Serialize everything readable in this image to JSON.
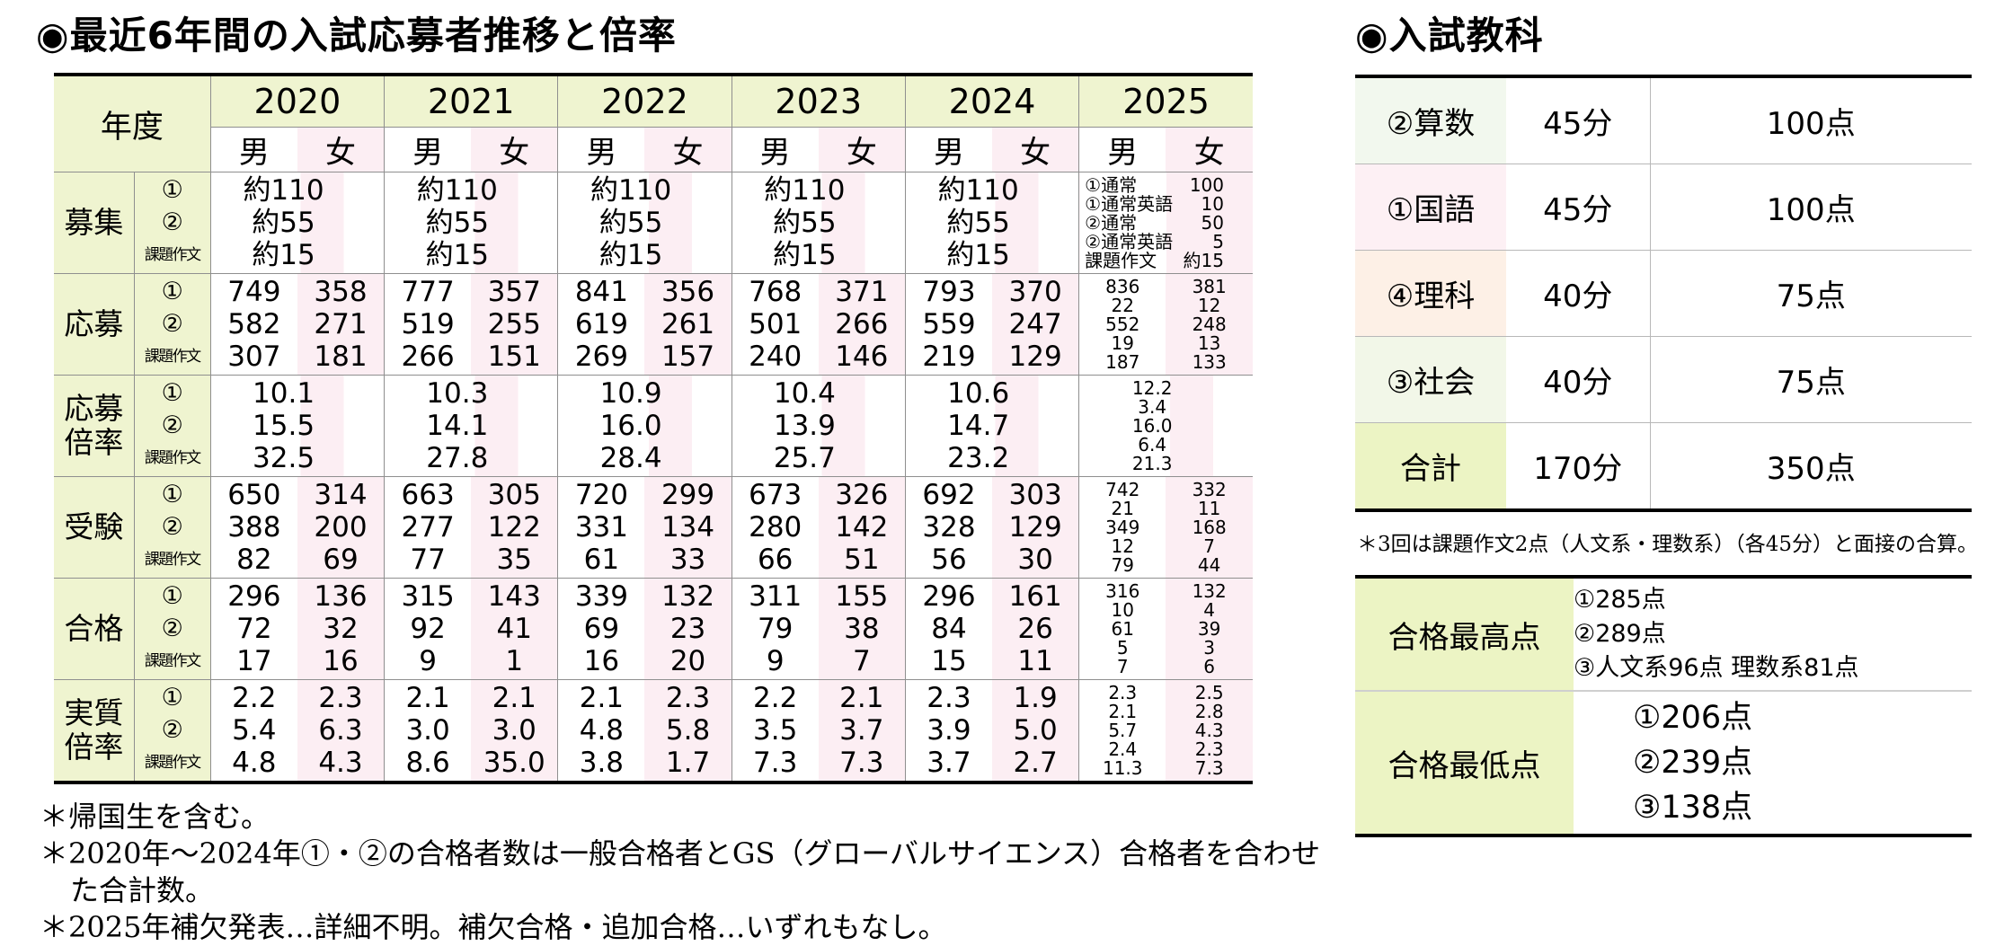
{
  "colors": {
    "label_green": "#eff4d0",
    "accent_green": "#ecf4c4",
    "female_pink": "#fceef3"
  },
  "left": {
    "title": "◉最近6年間の入試応募者推移と倍率",
    "header": {
      "year_label": "年度",
      "male": "男",
      "female": "女",
      "years": [
        "2020",
        "2021",
        "2022",
        "2023",
        "2024",
        "2025"
      ]
    },
    "row_sublabels": [
      "①",
      "②",
      "課題作文"
    ],
    "rows": [
      {
        "key": "recruit",
        "label_lines": [
          "募集"
        ],
        "cells": [
          {
            "type": "merged",
            "values": [
              "約110",
              "約55",
              "約15"
            ]
          },
          {
            "type": "merged",
            "values": [
              "約110",
              "約55",
              "約15"
            ]
          },
          {
            "type": "merged",
            "values": [
              "約110",
              "約55",
              "約15"
            ]
          },
          {
            "type": "merged",
            "values": [
              "約110",
              "約55",
              "約15"
            ]
          },
          {
            "type": "merged",
            "values": [
              "約110",
              "約55",
              "約15"
            ]
          },
          {
            "type": "labeled",
            "lines": [
              {
                "label": "①通常",
                "value": "100"
              },
              {
                "label": "①通常英語",
                "value": "10"
              },
              {
                "label": "②通常",
                "value": "50"
              },
              {
                "label": "②通常英語",
                "value": "5"
              },
              {
                "label": "課題作文",
                "value": "約15"
              }
            ]
          }
        ]
      },
      {
        "key": "applicants",
        "label_lines": [
          "応募"
        ],
        "cells": [
          {
            "type": "mf",
            "male": [
              "749",
              "582",
              "307"
            ],
            "female": [
              "358",
              "271",
              "181"
            ]
          },
          {
            "type": "mf",
            "male": [
              "777",
              "519",
              "266"
            ],
            "female": [
              "357",
              "255",
              "151"
            ]
          },
          {
            "type": "mf",
            "male": [
              "841",
              "619",
              "269"
            ],
            "female": [
              "356",
              "261",
              "157"
            ]
          },
          {
            "type": "mf",
            "male": [
              "768",
              "501",
              "240"
            ],
            "female": [
              "371",
              "266",
              "146"
            ]
          },
          {
            "type": "mf",
            "male": [
              "793",
              "559",
              "219"
            ],
            "female": [
              "370",
              "247",
              "129"
            ]
          },
          {
            "type": "mf",
            "small": true,
            "male": [
              "836",
              "22",
              "552",
              "19",
              "187"
            ],
            "female": [
              "381",
              "12",
              "248",
              "13",
              "133"
            ]
          }
        ]
      },
      {
        "key": "app-ratio",
        "label_lines": [
          "応募",
          "倍率"
        ],
        "cells": [
          {
            "type": "merged",
            "values": [
              "10.1",
              "15.5",
              "32.5"
            ]
          },
          {
            "type": "merged",
            "values": [
              "10.3",
              "14.1",
              "27.8"
            ]
          },
          {
            "type": "merged",
            "values": [
              "10.9",
              "16.0",
              "28.4"
            ]
          },
          {
            "type": "merged",
            "values": [
              "10.4",
              "13.9",
              "25.7"
            ]
          },
          {
            "type": "merged",
            "values": [
              "10.6",
              "14.7",
              "23.2"
            ]
          },
          {
            "type": "merged",
            "small": true,
            "values": [
              "12.2",
              "3.4",
              "16.0",
              "6.4",
              "21.3"
            ]
          }
        ]
      },
      {
        "key": "examinees",
        "label_lines": [
          "受験"
        ],
        "cells": [
          {
            "type": "mf",
            "male": [
              "650",
              "388",
              "82"
            ],
            "female": [
              "314",
              "200",
              "69"
            ]
          },
          {
            "type": "mf",
            "male": [
              "663",
              "277",
              "77"
            ],
            "female": [
              "305",
              "122",
              "35"
            ]
          },
          {
            "type": "mf",
            "male": [
              "720",
              "331",
              "61"
            ],
            "female": [
              "299",
              "134",
              "33"
            ]
          },
          {
            "type": "mf",
            "male": [
              "673",
              "280",
              "66"
            ],
            "female": [
              "326",
              "142",
              "51"
            ]
          },
          {
            "type": "mf",
            "male": [
              "692",
              "328",
              "56"
            ],
            "female": [
              "303",
              "129",
              "30"
            ]
          },
          {
            "type": "mf",
            "small": true,
            "male": [
              "742",
              "21",
              "349",
              "12",
              "79"
            ],
            "female": [
              "332",
              "11",
              "168",
              "7",
              "44"
            ]
          }
        ]
      },
      {
        "key": "passed",
        "label_lines": [
          "合格"
        ],
        "cells": [
          {
            "type": "mf",
            "male": [
              "296",
              "72",
              "17"
            ],
            "female": [
              "136",
              "32",
              "16"
            ]
          },
          {
            "type": "mf",
            "male": [
              "315",
              "92",
              "9"
            ],
            "female": [
              "143",
              "41",
              "1"
            ]
          },
          {
            "type": "mf",
            "male": [
              "339",
              "69",
              "16"
            ],
            "female": [
              "132",
              "23",
              "20"
            ]
          },
          {
            "type": "mf",
            "male": [
              "311",
              "79",
              "9"
            ],
            "female": [
              "155",
              "38",
              "7"
            ]
          },
          {
            "type": "mf",
            "male": [
              "296",
              "84",
              "15"
            ],
            "female": [
              "161",
              "26",
              "11"
            ]
          },
          {
            "type": "mf",
            "small": true,
            "male": [
              "316",
              "10",
              "61",
              "5",
              "7"
            ],
            "female": [
              "132",
              "4",
              "39",
              "3",
              "6"
            ]
          }
        ]
      },
      {
        "key": "real-ratio",
        "label_lines": [
          "実質",
          "倍率"
        ],
        "cells": [
          {
            "type": "mf",
            "male": [
              "2.2",
              "5.4",
              "4.8"
            ],
            "female": [
              "2.3",
              "6.3",
              "4.3"
            ]
          },
          {
            "type": "mf",
            "male": [
              "2.1",
              "3.0",
              "8.6"
            ],
            "female": [
              "2.1",
              "3.0",
              "35.0"
            ]
          },
          {
            "type": "mf",
            "male": [
              "2.1",
              "4.8",
              "3.8"
            ],
            "female": [
              "2.3",
              "5.8",
              "1.7"
            ]
          },
          {
            "type": "mf",
            "male": [
              "2.2",
              "3.5",
              "7.3"
            ],
            "female": [
              "2.1",
              "3.7",
              "7.3"
            ]
          },
          {
            "type": "mf",
            "male": [
              "2.3",
              "3.9",
              "3.7"
            ],
            "female": [
              "1.9",
              "5.0",
              "2.7"
            ]
          },
          {
            "type": "mf",
            "small": true,
            "male": [
              "2.3",
              "2.1",
              "5.7",
              "2.4",
              "11.3"
            ],
            "female": [
              "2.5",
              "2.8",
              "4.3",
              "2.3",
              "7.3"
            ]
          }
        ]
      }
    ],
    "notes": [
      [
        "＊帰国生を含む。"
      ],
      [
        "＊2020年～2024年①・②の合格者数は一般合格者とGS（グローバルサイエンス）合格者を合わせ",
        "た合計数。"
      ],
      [
        "＊2025年補欠発表…詳細不明。補欠合格・追加合格…いずれもなし。"
      ]
    ]
  },
  "right": {
    "title": "◉入試教科",
    "subjects": [
      {
        "name": "②算数",
        "time": "45分",
        "points": "100点",
        "color": "#f2f8ee"
      },
      {
        "name": "①国語",
        "time": "45分",
        "points": "100点",
        "color": "#fdf0f4"
      },
      {
        "name": "④理科",
        "time": "40分",
        "points": "75点",
        "color": "#fdf0e6"
      },
      {
        "name": "③社会",
        "time": "40分",
        "points": "75点",
        "color": "#f2f7e8"
      },
      {
        "name": "合計",
        "time": "170分",
        "points": "350点",
        "color": "#ecf4c4"
      }
    ],
    "note": "＊3回は課題作文2点（人文系・理数系）（各45分）と面接の合算。",
    "scores": [
      {
        "label": "合格最高点",
        "size": "small",
        "values": [
          "①285点",
          "②289点",
          "③人文系96点 理数系81点"
        ]
      },
      {
        "label": "合格最低点",
        "size": "large",
        "values": [
          "①206点",
          "②239点",
          "③138点"
        ]
      }
    ]
  }
}
